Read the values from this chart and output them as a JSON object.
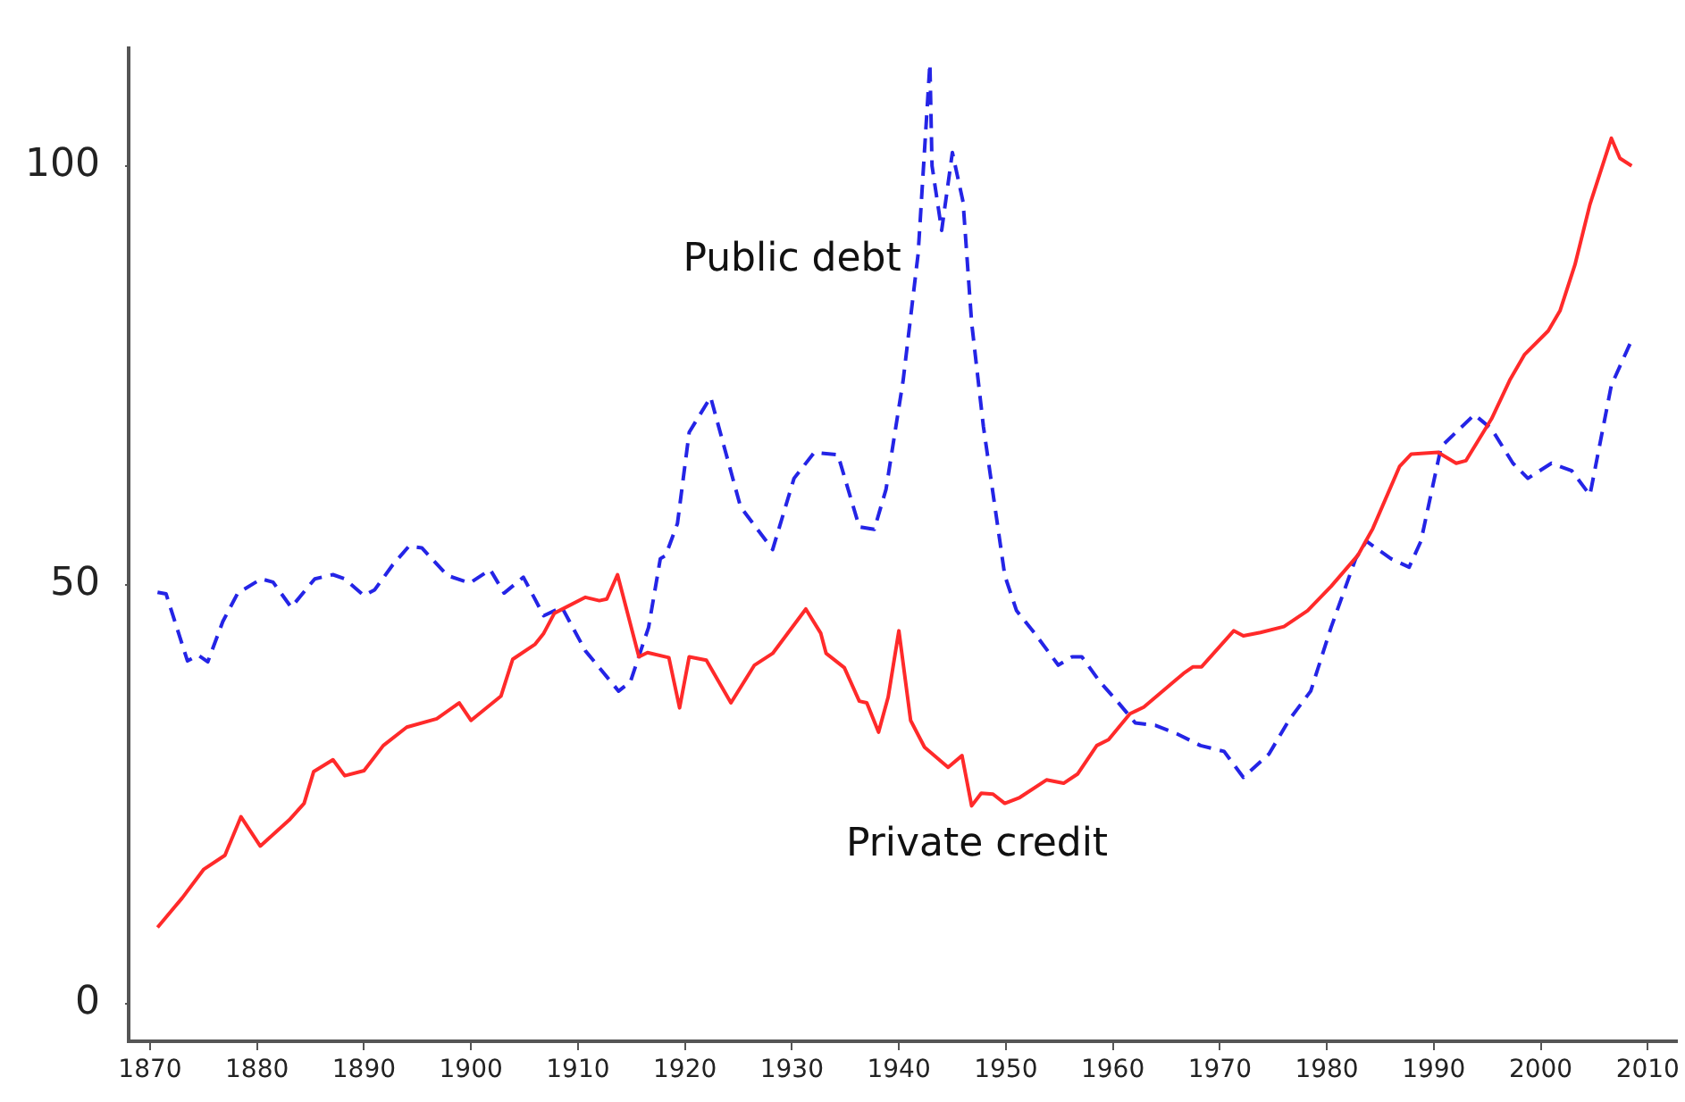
{
  "chart_data": {
    "type": "line",
    "xlim": [
      1868,
      2012.7
    ],
    "ylim": [
      -4.5,
      114
    ],
    "xticks": [
      1870,
      1880,
      1890,
      1900,
      1910,
      1920,
      1930,
      1940,
      1950,
      1960,
      1970,
      1980,
      1990,
      2000,
      2010
    ],
    "yticks": [
      0,
      50,
      100
    ],
    "grid": false,
    "legend": false,
    "marker": "none",
    "series": [
      {
        "name": "Private credit",
        "color": "#ff2a2a",
        "line_style": "solid",
        "x": [
          1870.7,
          1873,
          1875,
          1877,
          1878.5,
          1880.3,
          1883,
          1884.4,
          1885.3,
          1887.1,
          1888.2,
          1890,
          1891.8,
          1894,
          1896.8,
          1898.9,
          1900,
          1902.8,
          1903.9,
          1906,
          1906.8,
          1907.8,
          1910.7,
          1912,
          1912.7,
          1913.7,
          1915.7,
          1916.5,
          1918.5,
          1919.5,
          1920.4,
          1922,
          1924.3,
          1926.5,
          1928.2,
          1931.3,
          1932.7,
          1933.2,
          1934.9,
          1936.3,
          1937,
          1938.1,
          1939,
          1940,
          1941.1,
          1942.4,
          1944.6,
          1945.9,
          1946.8,
          1947.7,
          1948.8,
          1949.9,
          1951.3,
          1953.8,
          1955.4,
          1956.7,
          1958.5,
          1959.6,
          1961.6,
          1962.9,
          1966.6,
          1967.5,
          1968.3,
          1971.3,
          1972.2,
          1973.8,
          1976,
          1978.2,
          1980.4,
          1982.9,
          1984.3,
          1986.8,
          1987.9,
          1990.4,
          1992.1,
          1993,
          1995.4,
          1997.1,
          1998.5,
          2000.7,
          2001.8,
          2003.2,
          2004.6,
          2006.6,
          2007.4,
          2008.5
        ],
        "values": [
          9.1,
          12.6,
          16,
          17.7,
          22.3,
          18.8,
          21.9,
          23.9,
          27.7,
          29.1,
          27.2,
          27.8,
          30.8,
          33,
          34,
          35.9,
          33.8,
          36.7,
          41.1,
          42.9,
          44.2,
          46.6,
          48.5,
          48.1,
          48.3,
          51.2,
          41.4,
          41.9,
          41.3,
          35.3,
          41.4,
          41,
          35.9,
          40.4,
          41.8,
          47.1,
          44.2,
          41.8,
          40.1,
          36.1,
          35.9,
          32.4,
          36.6,
          44.5,
          33.8,
          30.6,
          28.2,
          29.6,
          23.6,
          25.1,
          25,
          23.9,
          24.6,
          26.7,
          26.3,
          27.4,
          30.8,
          31.5,
          34.6,
          35.4,
          39.4,
          40.2,
          40.2,
          44.5,
          43.9,
          44.3,
          45,
          46.9,
          49.8,
          53.5,
          56.7,
          64.1,
          65.6,
          65.8,
          64.5,
          64.8,
          69.8,
          74.4,
          77.5,
          80.3,
          82.7,
          88.2,
          95.4,
          103.3,
          100.9,
          100
        ]
      },
      {
        "name": "Public debt",
        "color": "#2424e6",
        "line_style": "dashed",
        "x": [
          1870.7,
          1871.5,
          1873.5,
          1874.5,
          1875.4,
          1876.8,
          1878.2,
          1880.4,
          1881.5,
          1883.2,
          1885.4,
          1887.1,
          1888.2,
          1890,
          1891,
          1892.7,
          1894.2,
          1895.4,
          1897.8,
          1899.9,
          1901.8,
          1903.1,
          1904.9,
          1906.8,
          1908.5,
          1910.7,
          1913.8,
          1914.9,
          1916.6,
          1917.7,
          1918.2,
          1919.3,
          1920.4,
          1922.4,
          1925.2,
          1928.2,
          1930.2,
          1932.1,
          1934.3,
          1936.3,
          1937.7,
          1938.8,
          1940.4,
          1941.8,
          1942.9,
          1943.1,
          1944,
          1945,
          1946,
          1946.8,
          1947.9,
          1949.9,
          1951,
          1952.7,
          1954.9,
          1956.2,
          1957.1,
          1958.8,
          1960.4,
          1962.1,
          1964,
          1966,
          1968.2,
          1970.4,
          1972.2,
          1974.6,
          1976.5,
          1978.5,
          1980.4,
          1982.7,
          1983.7,
          1986,
          1987.7,
          1988.8,
          1990.7,
          1993.8,
          1995.4,
          1997.4,
          1998.8,
          2001,
          2002.9,
          2004.6,
          2006.6,
          2008.5
        ],
        "values": [
          49.1,
          48.9,
          40.9,
          41.6,
          40.8,
          45.6,
          49,
          50.7,
          50.3,
          47.3,
          50.7,
          51.2,
          50.7,
          48.7,
          49.4,
          52.4,
          54.6,
          54.4,
          51.1,
          50.2,
          51.8,
          49,
          50.9,
          46.3,
          47.3,
          42.1,
          37.3,
          38.4,
          44.9,
          53.1,
          53.5,
          57.3,
          68.2,
          72.4,
          59.3,
          54.2,
          62.7,
          65.8,
          65.5,
          56.9,
          56.6,
          61.4,
          74.4,
          89.5,
          112.2,
          100,
          92.3,
          101.6,
          95.7,
          81.3,
          68.9,
          51.1,
          46.9,
          44.2,
          40.4,
          41.4,
          41.4,
          38.4,
          36.1,
          33.5,
          33.2,
          32.2,
          30.8,
          30.1,
          27,
          29.8,
          33.9,
          37.3,
          44.9,
          53.1,
          55.2,
          53.1,
          52.1,
          55.2,
          66.5,
          70.3,
          68.6,
          64.5,
          62.7,
          64.5,
          63.6,
          60.7,
          73.8,
          79.2
        ]
      }
    ]
  }
}
